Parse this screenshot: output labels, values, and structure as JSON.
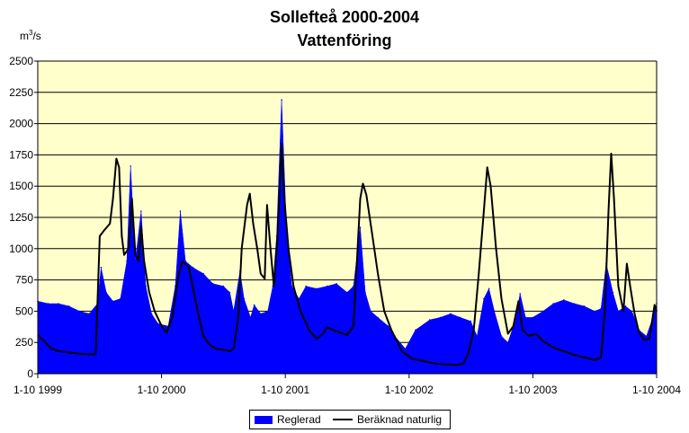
{
  "chart_data": {
    "type": "area",
    "title": "Sollefteå 2000-2004",
    "subtitle": "Vattenföring",
    "yunit_label_base": "m",
    "yunit_label_sup": "3",
    "yunit_label_tail": "/s",
    "ylim": [
      0,
      2500
    ],
    "yticks": [
      "0",
      "250",
      "500",
      "750",
      "1000",
      "1250",
      "1500",
      "1750",
      "2000",
      "2250",
      "2500"
    ],
    "xlim": [
      "1999-10-01",
      "2004-10-01"
    ],
    "xticks": [
      "1-10 1999",
      "1-10 2000",
      "1-10 2001",
      "1-10 2002",
      "1-10 2003",
      "1-10 2004"
    ],
    "grid": true,
    "background": "#ffffcc",
    "legend_position": "bottom",
    "series": [
      {
        "name": "Reglerad",
        "kind": "bar",
        "color": "#0000ff",
        "points": [
          [
            "1999-10-01",
            580
          ],
          [
            "1999-11-01",
            560
          ],
          [
            "1999-12-01",
            560
          ],
          [
            "2000-01-01",
            540
          ],
          [
            "2000-02-01",
            500
          ],
          [
            "2000-03-01",
            480
          ],
          [
            "2000-03-25",
            560
          ],
          [
            "2000-04-05",
            850
          ],
          [
            "2000-04-20",
            650
          ],
          [
            "2000-05-10",
            580
          ],
          [
            "2000-06-01",
            600
          ],
          [
            "2000-06-20",
            900
          ],
          [
            "2000-07-01",
            1660
          ],
          [
            "2000-07-15",
            900
          ],
          [
            "2000-08-01",
            1300
          ],
          [
            "2000-08-15",
            700
          ],
          [
            "2000-09-01",
            480
          ],
          [
            "2000-09-20",
            400
          ],
          [
            "2000-10-20",
            380
          ],
          [
            "2000-11-10",
            700
          ],
          [
            "2000-11-25",
            1300
          ],
          [
            "2000-12-10",
            900
          ],
          [
            "2001-01-01",
            850
          ],
          [
            "2001-02-01",
            800
          ],
          [
            "2001-03-01",
            720
          ],
          [
            "2001-04-01",
            700
          ],
          [
            "2001-04-20",
            650
          ],
          [
            "2001-05-01",
            500
          ],
          [
            "2001-05-20",
            820
          ],
          [
            "2001-06-01",
            600
          ],
          [
            "2001-06-20",
            450
          ],
          [
            "2001-07-01",
            550
          ],
          [
            "2001-07-20",
            480
          ],
          [
            "2001-08-10",
            500
          ],
          [
            "2001-08-25",
            700
          ],
          [
            "2001-09-05",
            1100
          ],
          [
            "2001-09-20",
            2190
          ],
          [
            "2001-10-05",
            1100
          ],
          [
            "2001-10-20",
            700
          ],
          [
            "2001-11-10",
            600
          ],
          [
            "2001-12-01",
            700
          ],
          [
            "2002-01-01",
            680
          ],
          [
            "2002-02-01",
            700
          ],
          [
            "2002-03-01",
            720
          ],
          [
            "2002-04-01",
            650
          ],
          [
            "2002-04-20",
            700
          ],
          [
            "2002-05-10",
            1170
          ],
          [
            "2002-05-25",
            650
          ],
          [
            "2002-06-10",
            500
          ],
          [
            "2002-07-01",
            450
          ],
          [
            "2002-08-01",
            380
          ],
          [
            "2002-08-20",
            300
          ],
          [
            "2002-09-20",
            200
          ],
          [
            "2002-10-20",
            350
          ],
          [
            "2002-12-01",
            430
          ],
          [
            "2003-01-01",
            450
          ],
          [
            "2003-02-01",
            480
          ],
          [
            "2003-03-01",
            450
          ],
          [
            "2003-04-01",
            420
          ],
          [
            "2003-04-20",
            300
          ],
          [
            "2003-05-10",
            600
          ],
          [
            "2003-05-25",
            680
          ],
          [
            "2003-06-10",
            500
          ],
          [
            "2003-07-01",
            300
          ],
          [
            "2003-07-20",
            250
          ],
          [
            "2003-08-10",
            420
          ],
          [
            "2003-08-25",
            640
          ],
          [
            "2003-09-10",
            450
          ],
          [
            "2003-10-01",
            450
          ],
          [
            "2003-11-01",
            500
          ],
          [
            "2003-12-01",
            560
          ],
          [
            "2004-01-01",
            590
          ],
          [
            "2004-02-01",
            560
          ],
          [
            "2004-03-01",
            540
          ],
          [
            "2004-04-01",
            500
          ],
          [
            "2004-04-20",
            520
          ],
          [
            "2004-05-05",
            880
          ],
          [
            "2004-05-25",
            650
          ],
          [
            "2004-06-10",
            500
          ],
          [
            "2004-07-01",
            540
          ],
          [
            "2004-07-20",
            500
          ],
          [
            "2004-08-10",
            350
          ],
          [
            "2004-09-01",
            300
          ],
          [
            "2004-09-20",
            450
          ],
          [
            "2004-10-01",
            560
          ]
        ]
      },
      {
        "name": "Beräknad naturlig",
        "kind": "line",
        "color": "#000000",
        "points": [
          [
            "1999-10-01",
            310
          ],
          [
            "1999-10-20",
            260
          ],
          [
            "1999-11-10",
            200
          ],
          [
            "1999-12-01",
            180
          ],
          [
            "2000-01-01",
            170
          ],
          [
            "2000-02-01",
            160
          ],
          [
            "2000-03-01",
            155
          ],
          [
            "2000-03-20",
            155
          ],
          [
            "2000-04-01",
            1100
          ],
          [
            "2000-04-15",
            1150
          ],
          [
            "2000-05-01",
            1200
          ],
          [
            "2000-05-10",
            1400
          ],
          [
            "2000-05-20",
            1720
          ],
          [
            "2000-05-28",
            1650
          ],
          [
            "2000-06-05",
            1100
          ],
          [
            "2000-06-12",
            950
          ],
          [
            "2000-06-25",
            1000
          ],
          [
            "2000-07-05",
            1400
          ],
          [
            "2000-07-15",
            950
          ],
          [
            "2000-07-25",
            900
          ],
          [
            "2000-08-01",
            1180
          ],
          [
            "2000-08-10",
            900
          ],
          [
            "2000-08-25",
            650
          ],
          [
            "2000-09-10",
            500
          ],
          [
            "2000-10-01",
            380
          ],
          [
            "2000-10-15",
            330
          ],
          [
            "2000-11-01",
            450
          ],
          [
            "2000-11-20",
            800
          ],
          [
            "2000-12-01",
            900
          ],
          [
            "2000-12-20",
            850
          ],
          [
            "2001-01-15",
            500
          ],
          [
            "2001-02-01",
            300
          ],
          [
            "2001-02-20",
            230
          ],
          [
            "2001-03-10",
            200
          ],
          [
            "2001-04-01",
            190
          ],
          [
            "2001-04-20",
            180
          ],
          [
            "2001-05-01",
            200
          ],
          [
            "2001-05-15",
            450
          ],
          [
            "2001-05-25",
            1000
          ],
          [
            "2001-06-10",
            1350
          ],
          [
            "2001-06-18",
            1440
          ],
          [
            "2001-06-28",
            1200
          ],
          [
            "2001-07-10",
            1000
          ],
          [
            "2001-07-20",
            800
          ],
          [
            "2001-08-01",
            760
          ],
          [
            "2001-08-08",
            1350
          ],
          [
            "2001-08-18",
            1000
          ],
          [
            "2001-08-28",
            700
          ],
          [
            "2001-09-08",
            1100
          ],
          [
            "2001-09-20",
            1840
          ],
          [
            "2001-09-28",
            1400
          ],
          [
            "2001-10-10",
            1000
          ],
          [
            "2001-10-25",
            700
          ],
          [
            "2001-11-15",
            500
          ],
          [
            "2001-12-10",
            350
          ],
          [
            "2002-01-01",
            280
          ],
          [
            "2002-01-20",
            320
          ],
          [
            "2002-02-01",
            370
          ],
          [
            "2002-02-20",
            350
          ],
          [
            "2002-03-10",
            330
          ],
          [
            "2002-04-01",
            310
          ],
          [
            "2002-04-20",
            380
          ],
          [
            "2002-05-10",
            1400
          ],
          [
            "2002-05-18",
            1520
          ],
          [
            "2002-05-28",
            1430
          ],
          [
            "2002-06-15",
            1100
          ],
          [
            "2002-07-01",
            800
          ],
          [
            "2002-07-20",
            500
          ],
          [
            "2002-08-10",
            350
          ],
          [
            "2002-09-10",
            180
          ],
          [
            "2002-10-10",
            120
          ],
          [
            "2002-11-15",
            100
          ],
          [
            "2002-12-20",
            80
          ],
          [
            "2003-01-20",
            75
          ],
          [
            "2003-02-20",
            70
          ],
          [
            "2003-03-10",
            80
          ],
          [
            "2003-03-25",
            160
          ],
          [
            "2003-04-10",
            350
          ],
          [
            "2003-04-25",
            800
          ],
          [
            "2003-05-10",
            1300
          ],
          [
            "2003-05-20",
            1650
          ],
          [
            "2003-05-30",
            1500
          ],
          [
            "2003-06-15",
            1000
          ],
          [
            "2003-07-01",
            600
          ],
          [
            "2003-07-20",
            320
          ],
          [
            "2003-08-05",
            380
          ],
          [
            "2003-08-20",
            580
          ],
          [
            "2003-09-01",
            350
          ],
          [
            "2003-09-20",
            300
          ],
          [
            "2003-10-10",
            320
          ],
          [
            "2003-11-01",
            260
          ],
          [
            "2003-12-01",
            210
          ],
          [
            "2004-01-01",
            180
          ],
          [
            "2004-02-01",
            150
          ],
          [
            "2004-03-01",
            130
          ],
          [
            "2004-04-01",
            110
          ],
          [
            "2004-04-20",
            130
          ],
          [
            "2004-05-01",
            500
          ],
          [
            "2004-05-12",
            1300
          ],
          [
            "2004-05-20",
            1760
          ],
          [
            "2004-05-28",
            1400
          ],
          [
            "2004-06-10",
            700
          ],
          [
            "2004-06-25",
            500
          ],
          [
            "2004-07-05",
            880
          ],
          [
            "2004-07-15",
            700
          ],
          [
            "2004-07-28",
            480
          ],
          [
            "2004-08-10",
            330
          ],
          [
            "2004-08-25",
            270
          ],
          [
            "2004-09-10",
            280
          ],
          [
            "2004-09-25",
            550
          ],
          [
            "2004-10-01",
            500
          ]
        ]
      }
    ]
  }
}
